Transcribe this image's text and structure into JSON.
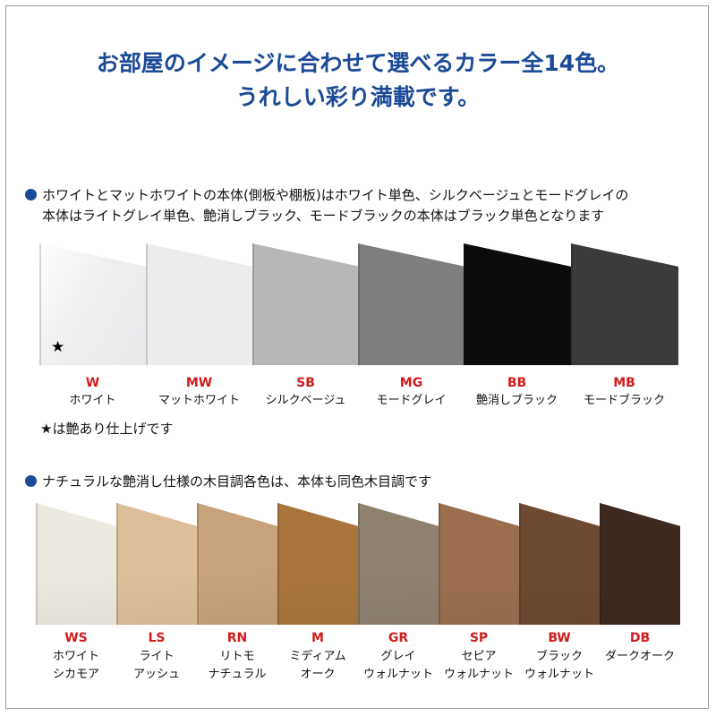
{
  "header": {
    "line1": "お部屋のイメージに合わせて選べるカラー全14色。",
    "line2": "うれしい彩り満載です。"
  },
  "section1": {
    "note_line1": "ホワイトとマットホワイトの本体(側板や棚板)はホワイト単色、シルクベージュとモードグレイの",
    "note_line2": "本体はライトグレイ単色、艶消しブラック、モードブラックの本体はブラック単色となります",
    "footnote": "★は艶あり仕上げです",
    "swatches": [
      {
        "code": "W",
        "name": "ホワイト",
        "color": "#f4f4f5",
        "star": "★"
      },
      {
        "code": "MW",
        "name": "マットホワイト",
        "color": "#ececec"
      },
      {
        "code": "SB",
        "name": "シルクベージュ",
        "color": "#b9b7b5"
      },
      {
        "code": "MG",
        "name": "モードグレイ",
        "color": "#7d7e7d"
      },
      {
        "code": "BB",
        "name": "艶消しブラック",
        "color": "#0c0c0c"
      },
      {
        "code": "MB",
        "name": "モードブラック",
        "color": "#3b3b3b"
      }
    ]
  },
  "section2": {
    "note": "ナチュラルな艶消し仕様の木目調各色は、本体も同色木目調です",
    "swatches": [
      {
        "code": "WS",
        "name1": "ホワイト",
        "name2": "シカモア",
        "color": "#ebe8e0"
      },
      {
        "code": "LS",
        "name1": "ライト",
        "name2": "アッシュ",
        "color": "#dcbf98"
      },
      {
        "code": "RN",
        "name1": "リトモ",
        "name2": "ナチュラル",
        "color": "#c7a27a"
      },
      {
        "code": "M",
        "name1": "ミディアム",
        "name2": "オーク",
        "color": "#a9753c"
      },
      {
        "code": "GR",
        "name1": "グレイ",
        "name2": "ウォルナット",
        "color": "#8e8170"
      },
      {
        "code": "SP",
        "name1": "セピア",
        "name2": "ウォルナット",
        "color": "#9b6f4e"
      },
      {
        "code": "BW",
        "name1": "ブラック",
        "name2": "ウォルナット",
        "color": "#6e4a32"
      },
      {
        "code": "DB",
        "name1": "ダークオーク",
        "name2": "",
        "color": "#3f2a21"
      }
    ]
  }
}
